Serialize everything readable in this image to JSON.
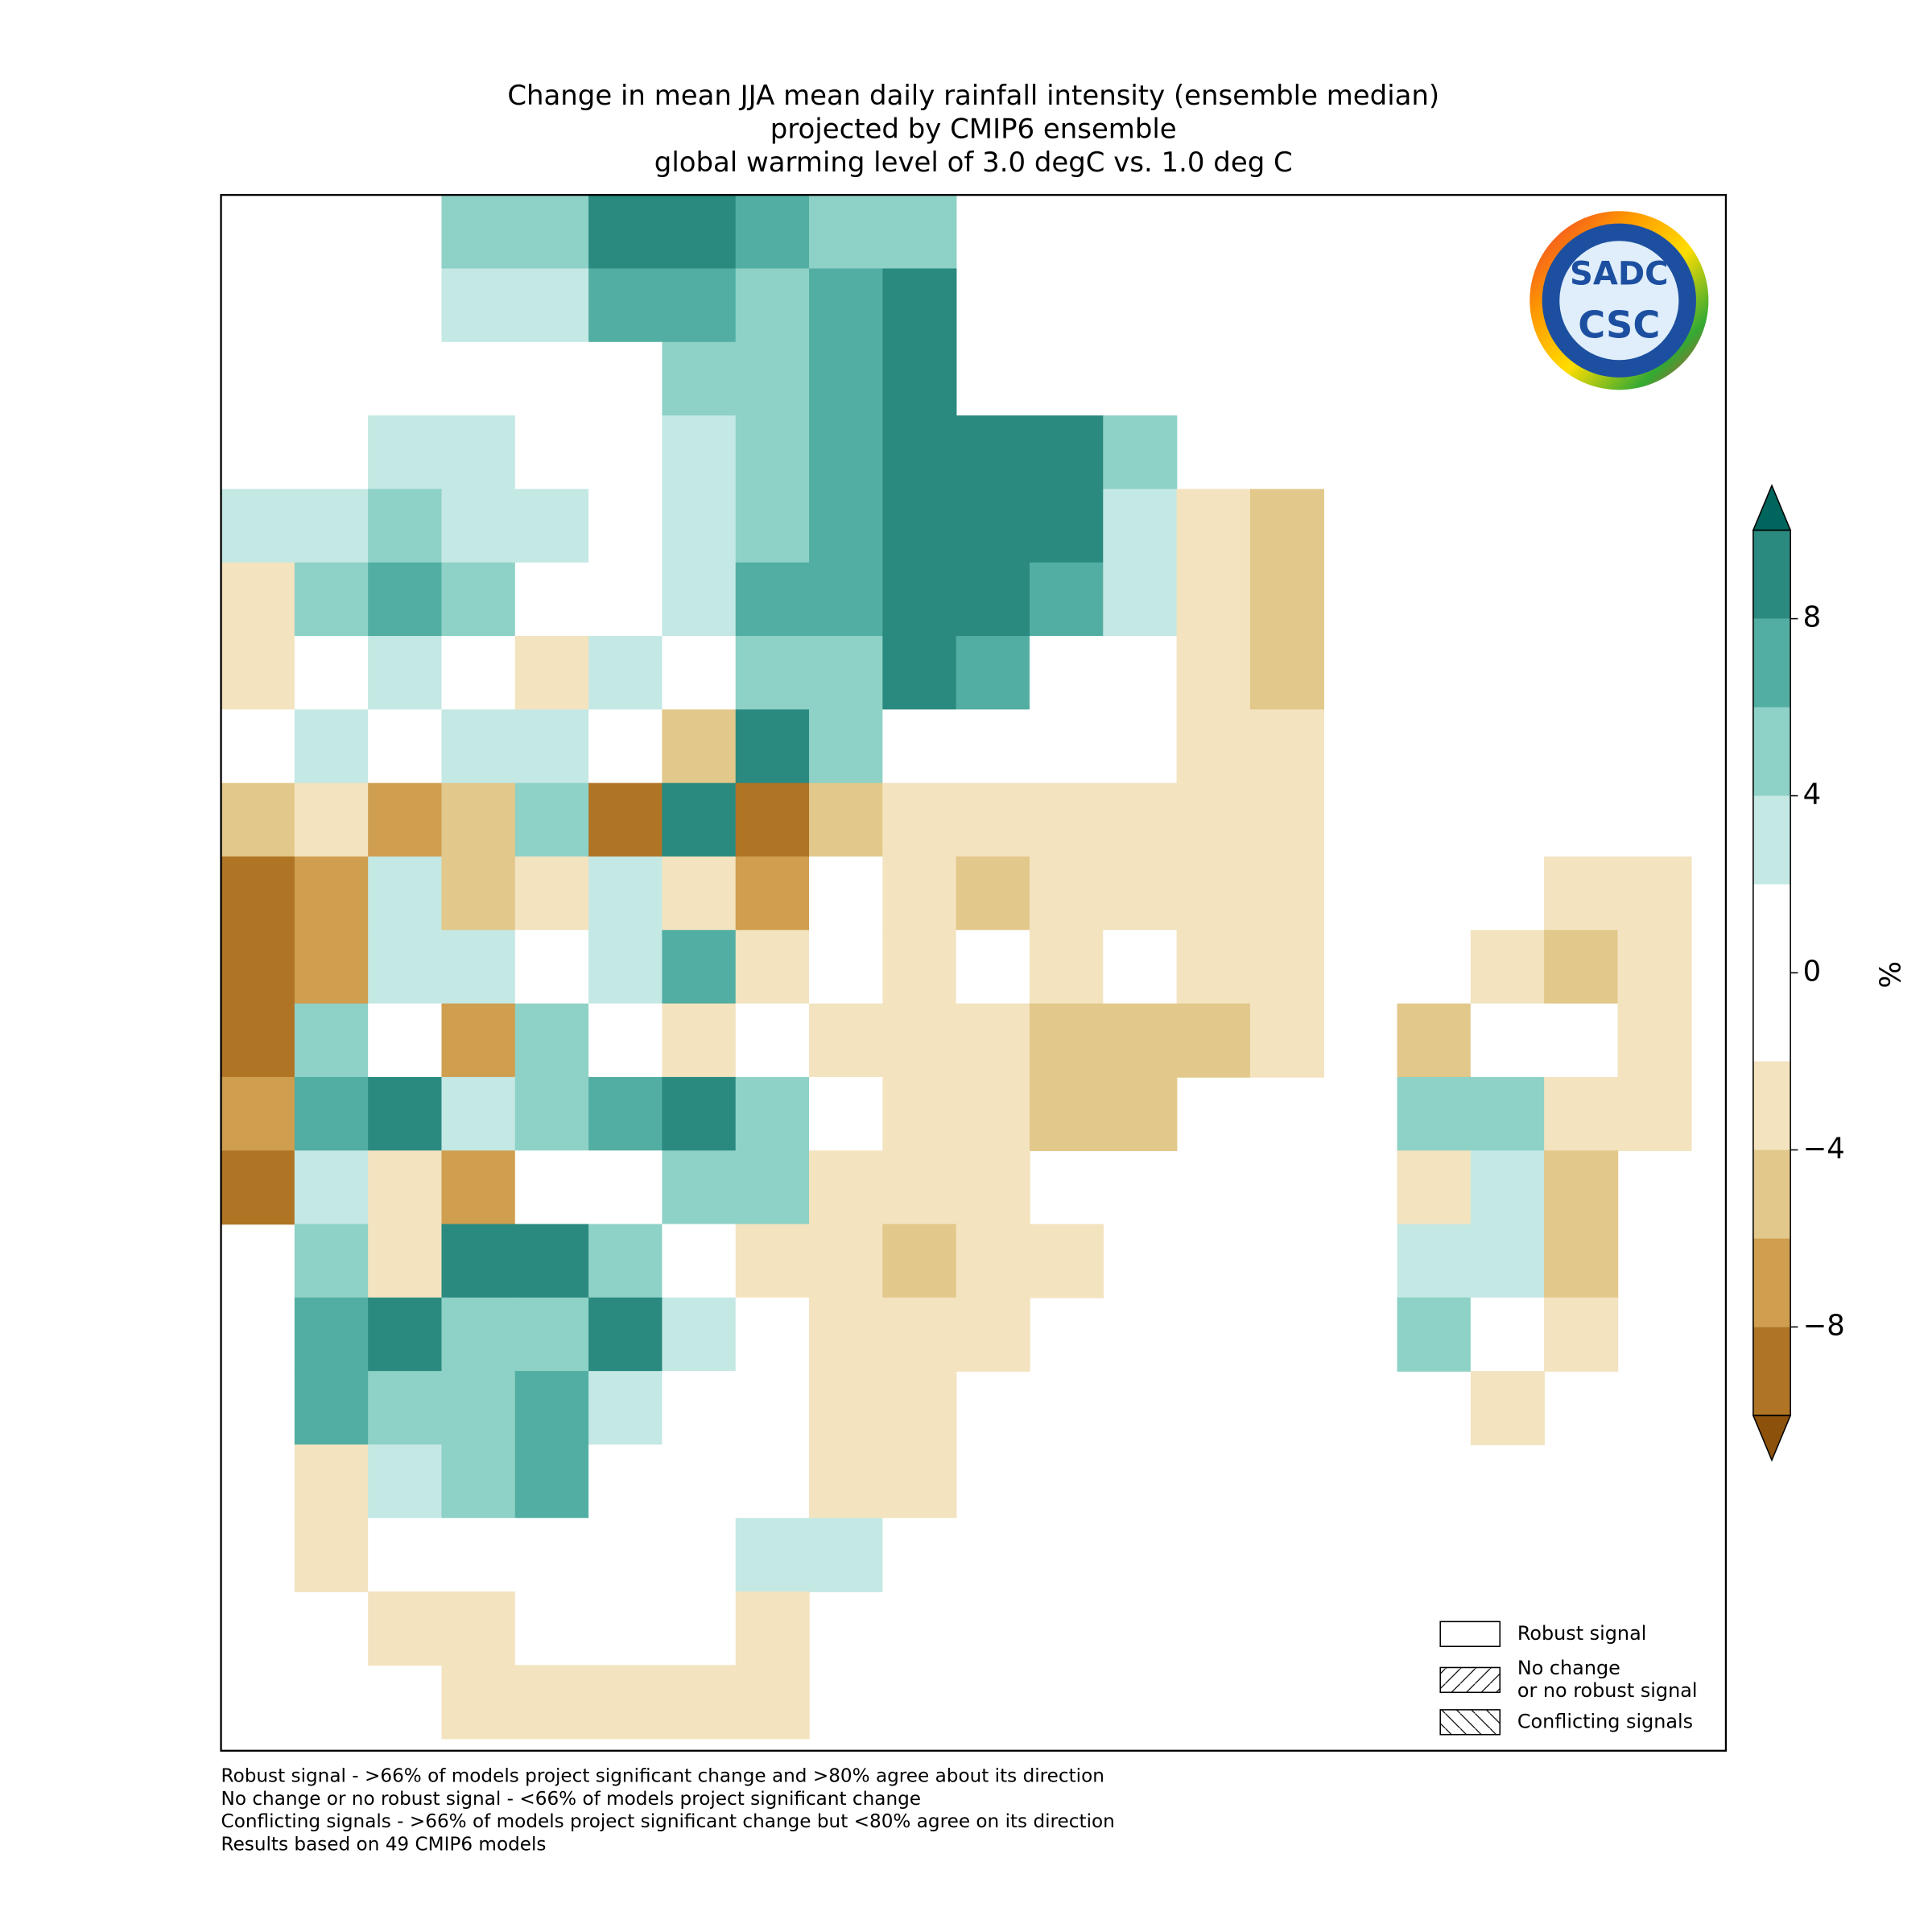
{
  "title": [
    "Change in mean JJA mean daily rainfall intensity (ensemble median)",
    "projected by CMIP6 ensemble",
    "global warming level of 3.0 degC vs. 1.0 deg C"
  ],
  "grid": {
    "values": [
      [
        null,
        null,
        null,
        5,
        5,
        9,
        9,
        7,
        5,
        5,
        null,
        null,
        null,
        null,
        null,
        null,
        null,
        null,
        null,
        null,
        null
      ],
      [
        null,
        null,
        null,
        3,
        3,
        7,
        7,
        5,
        7,
        9,
        null,
        null,
        null,
        null,
        null,
        null,
        null,
        null,
        null,
        null,
        null
      ],
      [
        null,
        null,
        null,
        0,
        0,
        0,
        5,
        5,
        7,
        9,
        null,
        null,
        null,
        null,
        null,
        null,
        null,
        null,
        null,
        null,
        null
      ],
      [
        null,
        null,
        3,
        3,
        0,
        0,
        3,
        5,
        7,
        9,
        9,
        9,
        5,
        null,
        null,
        null,
        null,
        null,
        null,
        null,
        null
      ],
      [
        3,
        3,
        5,
        3,
        3,
        0,
        3,
        5,
        7,
        9,
        9,
        9,
        3,
        -3,
        -5,
        null,
        null,
        null,
        null,
        null,
        null
      ],
      [
        -3,
        5,
        7,
        5,
        0,
        0,
        3,
        7,
        7,
        9,
        9,
        7,
        3,
        -3,
        -5,
        null,
        null,
        null,
        null,
        null,
        null
      ],
      [
        -3,
        0,
        3,
        0,
        -3,
        3,
        0,
        5,
        5,
        9,
        7,
        0,
        0,
        -3,
        -5,
        null,
        null,
        null,
        null,
        null,
        null
      ],
      [
        0,
        3,
        0,
        3,
        3,
        0,
        -5,
        9,
        5,
        0,
        0,
        0,
        0,
        -3,
        -3,
        null,
        null,
        null,
        null,
        null,
        null
      ],
      [
        -5,
        -3,
        -7,
        -5,
        5,
        -9,
        9,
        -9,
        -5,
        -3,
        -3,
        -3,
        -3,
        -3,
        -3,
        null,
        null,
        null,
        null,
        null,
        null
      ],
      [
        -9,
        -7,
        3,
        -5,
        -3,
        3,
        -3,
        -7,
        0,
        -3,
        -5,
        -3,
        -3,
        -3,
        -3,
        null,
        null,
        null,
        -3,
        -3,
        null
      ],
      [
        -9,
        -7,
        3,
        3,
        0,
        3,
        7,
        -3,
        0,
        -3,
        0,
        -3,
        0,
        -3,
        -3,
        null,
        null,
        -3,
        -5,
        -3,
        null
      ],
      [
        -9,
        5,
        0,
        -7,
        5,
        0,
        -3,
        0,
        -3,
        -3,
        -3,
        -5,
        -5,
        -5,
        -3,
        null,
        -5,
        0,
        0,
        -3,
        null
      ],
      [
        -7,
        7,
        9,
        3,
        5,
        7,
        9,
        5,
        0,
        -3,
        -3,
        -5,
        -5,
        null,
        null,
        null,
        5,
        5,
        -3,
        -3,
        null
      ],
      [
        -9,
        3,
        -3,
        -7,
        0,
        0,
        5,
        5,
        -3,
        -3,
        -3,
        null,
        null,
        null,
        null,
        null,
        -3,
        3,
        -5,
        null,
        null
      ],
      [
        null,
        5,
        -3,
        9,
        9,
        5,
        0,
        -3,
        -3,
        -5,
        -3,
        -3,
        null,
        null,
        null,
        null,
        3,
        3,
        -5,
        null,
        null
      ],
      [
        null,
        7,
        9,
        5,
        5,
        9,
        3,
        0,
        -3,
        -3,
        -3,
        null,
        null,
        null,
        null,
        null,
        5,
        0,
        -3,
        null,
        null
      ],
      [
        null,
        7,
        5,
        5,
        7,
        3,
        0,
        0,
        -3,
        -3,
        null,
        null,
        null,
        null,
        null,
        null,
        null,
        -3,
        null,
        null,
        null
      ],
      [
        null,
        -3,
        3,
        5,
        7,
        0,
        0,
        0,
        -3,
        -3,
        null,
        null,
        null,
        null,
        null,
        null,
        null,
        null,
        null,
        null,
        null
      ],
      [
        null,
        -3,
        0,
        0,
        0,
        0,
        0,
        3,
        3,
        0,
        null,
        null,
        null,
        null,
        null,
        null,
        null,
        null,
        null,
        null,
        null
      ],
      [
        null,
        null,
        -3,
        -3,
        0,
        0,
        0,
        -3,
        null,
        null,
        null,
        null,
        null,
        null,
        null,
        null,
        null,
        null,
        null,
        null,
        null
      ],
      [
        null,
        null,
        null,
        -3,
        -3,
        -3,
        -3,
        -3,
        null,
        null,
        null,
        null,
        null,
        null,
        null,
        null,
        null,
        null,
        null,
        null,
        null
      ]
    ]
  },
  "colorbar": {
    "label": "%",
    "levels": [
      -10,
      -8,
      -6,
      -4,
      -2,
      2,
      4,
      6,
      8,
      10
    ],
    "colors": [
      "#8c510a",
      "#b07425",
      "#cf9e4f",
      "#e2c88a",
      "#f3e3bf",
      "#ffffff",
      "#c4e8e4",
      "#8ed1c6",
      "#52aea2",
      "#2a8a80",
      "#00665d"
    ],
    "ticks": [
      8,
      4,
      0,
      {
        "value": -4,
        "label": "−4"
      },
      {
        "value": -8,
        "label": "−8"
      }
    ]
  },
  "legend": [
    {
      "label": [
        "Robust signal"
      ],
      "hatch": "none"
    },
    {
      "label": [
        "No change",
        "or no robust signal"
      ],
      "hatch": "forward"
    },
    {
      "label": [
        "Conflicting signals"
      ],
      "hatch": "back"
    }
  ],
  "logo": [
    "SADC",
    "CSC"
  ],
  "footnotes": [
    "Robust signal - >66% of models project significant change and >80% agree about its direction",
    "No change or no robust signal - <66% of models project significant change",
    "Conflicting signals - >66% of models project significant change but <80% agree on its direction",
    "Results based on 49 CMIP6 models"
  ]
}
